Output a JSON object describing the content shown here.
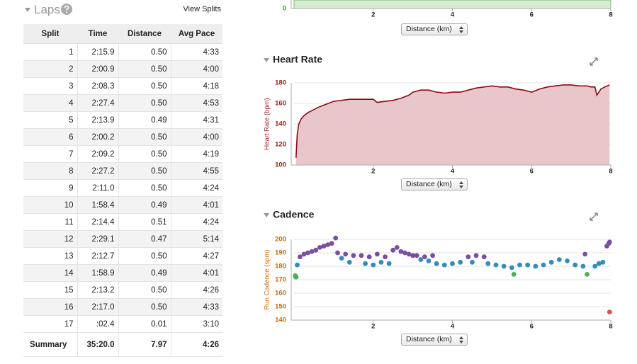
{
  "laps": {
    "title": "Laps",
    "view_splits": "View Splits",
    "columns": [
      "Split",
      "Time",
      "Distance",
      "Avg Pace"
    ],
    "rows": [
      [
        "1",
        "2:15.9",
        "0.50",
        "4:33"
      ],
      [
        "2",
        "2:00.9",
        "0.50",
        "4:00"
      ],
      [
        "3",
        "2:08.3",
        "0.50",
        "4:18"
      ],
      [
        "4",
        "2:27.4",
        "0.50",
        "4:53"
      ],
      [
        "5",
        "2:13.9",
        "0.49",
        "4:31"
      ],
      [
        "6",
        "2:00.2",
        "0.50",
        "4:00"
      ],
      [
        "7",
        "2:09.2",
        "0.50",
        "4:19"
      ],
      [
        "8",
        "2:27.2",
        "0.50",
        "4:55"
      ],
      [
        "9",
        "2:11.0",
        "0.50",
        "4:24"
      ],
      [
        "10",
        "1:58.4",
        "0.49",
        "4:01"
      ],
      [
        "11",
        "2:14.4",
        "0.51",
        "4:24"
      ],
      [
        "12",
        "2:29.1",
        "0.47",
        "5:14"
      ],
      [
        "13",
        "2:12.7",
        "0.50",
        "4:27"
      ],
      [
        "14",
        "1:58.9",
        "0.49",
        "4:01"
      ],
      [
        "15",
        "2:13.2",
        "0.50",
        "4:26"
      ],
      [
        "16",
        "2:17.0",
        "0.50",
        "4:33"
      ],
      [
        "17",
        ":02.4",
        "0.01",
        "3:10"
      ]
    ],
    "summary": [
      "Summary",
      "35:20.0",
      "7.97",
      "4:26"
    ]
  },
  "chart_data": [
    {
      "type": "area",
      "x_label": "Distance (km)",
      "color": "#d6ecd0",
      "tick_color": "#3a9a2a",
      "xlim": [
        0,
        8
      ],
      "xticks": [
        2,
        4,
        6,
        8
      ],
      "yticks": [
        0
      ]
    },
    {
      "type": "line",
      "title": "Heart Rate",
      "y_label": "Heart Rate (bpm)",
      "x_label": "Distance (km)",
      "color": "#8b0a12",
      "fill": "#e9c6c9",
      "tick_color": "#9b1a1a",
      "grid": true,
      "xlim": [
        0,
        8
      ],
      "ylim": [
        100,
        180
      ],
      "xticks": [
        2,
        4,
        6,
        8
      ],
      "yticks": [
        100,
        120,
        140,
        160,
        180
      ],
      "x": [
        0.05,
        0.08,
        0.12,
        0.18,
        0.25,
        0.35,
        0.45,
        0.6,
        0.8,
        1.0,
        1.2,
        1.4,
        1.6,
        1.8,
        2.0,
        2.1,
        2.3,
        2.5,
        2.7,
        2.9,
        3.0,
        3.2,
        3.4,
        3.6,
        3.8,
        4.0,
        4.2,
        4.4,
        4.6,
        4.8,
        5.0,
        5.2,
        5.4,
        5.6,
        5.8,
        6.0,
        6.2,
        6.4,
        6.6,
        6.8,
        7.0,
        7.2,
        7.4,
        7.5,
        7.6,
        7.65,
        7.75,
        7.85,
        7.97
      ],
      "values": [
        107,
        130,
        140,
        145,
        148,
        151,
        153,
        156,
        159,
        162,
        163,
        164,
        164,
        164,
        164,
        161,
        162,
        163,
        165,
        168,
        171,
        173,
        173,
        171,
        170,
        171,
        171,
        173,
        175,
        176,
        177,
        176,
        176,
        174,
        173,
        171,
        174,
        176,
        177,
        178,
        178,
        177,
        177,
        176,
        176,
        168,
        174,
        176,
        178
      ]
    },
    {
      "type": "scatter",
      "title": "Cadence",
      "y_label": "Run Cadence (spm)",
      "x_label": "Distance (km)",
      "tick_color": "#c8690a",
      "grid": true,
      "xlim": [
        0,
        8
      ],
      "ylim": [
        140,
        200
      ],
      "xticks": [
        2,
        4,
        6,
        8
      ],
      "yticks": [
        140,
        150,
        160,
        170,
        180,
        190,
        200
      ],
      "series": [
        {
          "color": "#7b4fa0",
          "x": [
            0.15,
            0.25,
            0.35,
            0.45,
            0.55,
            0.65,
            0.75,
            0.85,
            0.95,
            1.05,
            1.1,
            1.3,
            1.5,
            1.7,
            1.9,
            2.1,
            2.3,
            2.5,
            2.6,
            2.7,
            2.8,
            2.9,
            3.0,
            3.1,
            3.3,
            3.5,
            4.4,
            4.6,
            4.8,
            7.35,
            7.9,
            7.95,
            7.97
          ],
          "values": [
            187,
            189,
            190,
            191,
            192,
            194,
            195,
            196,
            197,
            201,
            190,
            189,
            188,
            188,
            187,
            189,
            187,
            192,
            194,
            191,
            190,
            189,
            188,
            188,
            187,
            188,
            187,
            188,
            187,
            189,
            195,
            197,
            198
          ]
        },
        {
          "color": "#2f8fb8",
          "x": [
            0.08,
            1.2,
            1.4,
            1.8,
            2.0,
            2.2,
            2.4,
            3.2,
            3.4,
            3.6,
            3.8,
            4.0,
            4.2,
            4.5,
            4.9,
            5.1,
            5.3,
            5.5,
            5.7,
            5.9,
            6.1,
            6.3,
            6.5,
            6.7,
            6.9,
            7.1,
            7.3,
            7.6,
            7.7,
            7.8
          ],
          "values": [
            181,
            186,
            183,
            182,
            181,
            183,
            182,
            185,
            184,
            182,
            181,
            182,
            183,
            183,
            182,
            181,
            180,
            179,
            181,
            181,
            180,
            181,
            183,
            185,
            184,
            181,
            180,
            180,
            182,
            183
          ]
        },
        {
          "color": "#4caf50",
          "x": [
            0.03,
            0.05,
            5.55,
            7.4
          ],
          "values": [
            173,
            172,
            174,
            174
          ]
        },
        {
          "color": "#d9534f",
          "x": [
            7.97
          ],
          "values": [
            146
          ]
        }
      ]
    }
  ]
}
